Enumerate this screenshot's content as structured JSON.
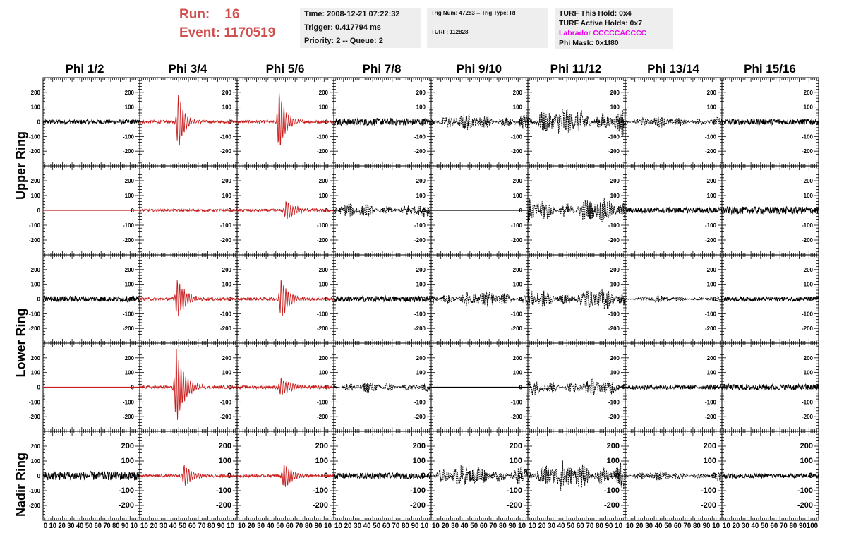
{
  "header": {
    "run_label": "Run:",
    "run_value": "16",
    "event_label": "Event:",
    "event_value": "1170519",
    "time": "Time: 2008-12-21 07:22:32",
    "trigger": "Trigger: 0.417794 ms",
    "priority": "Priority: 2 -- Queue: 2",
    "trig_num": "Trig Num: 47283 -- Trig Type: RF",
    "turf": "TURF: 112828",
    "turf_this_hold": "TURF This Hold: 0x4",
    "turf_active_holds": "TURF Active Holds: 0x7",
    "labrador": "Labrador CCCCCACCCC",
    "phi_mask": "Phi Mask: 0x1f80"
  },
  "colors": {
    "red_trace": "#c81e1e",
    "black_trace": "#000000",
    "run_text": "#d05050",
    "labrador_text": "#ee00ee",
    "box_bg": "#eeeeee"
  },
  "chart_data": {
    "type": "line",
    "columns": [
      "Phi 1/2",
      "Phi 3/4",
      "Phi 5/6",
      "Phi 7/8",
      "Phi 9/10",
      "Phi 11/12",
      "Phi 13/14",
      "Phi 15/16"
    ],
    "rows": [
      "Upper Ring",
      "Lower Ring",
      "Nadir Ring"
    ],
    "ylim": [
      -300,
      300
    ],
    "y_ticks": [
      200,
      100,
      0,
      -100,
      -200
    ],
    "y_tick_labels": [
      "200",
      "100",
      "0",
      "-100",
      "-200"
    ],
    "xlim": [
      0,
      100
    ],
    "x_ticks": [
      0,
      10,
      20,
      30,
      40,
      50,
      60,
      70,
      80,
      90,
      100
    ],
    "x_tick_labels": [
      "0",
      "10",
      "20",
      "30",
      "40",
      "50",
      "60",
      "70",
      "80",
      "90",
      "100"
    ],
    "x_tick_text": [
      "0 10 20 30 40 50 60 70 80 90 10",
      "10 20 30 40 50 60 70 80 90 10",
      "10 20 30 40 50 60 70 80 90 10",
      "10 20 30 40 50 60 70 80 90 10",
      "10 20 30 40 50 60 70 80 90 10",
      "10 20 30 40 50 60 70 80 90 10",
      "10 20 30 40 50 60 70 80 90 10",
      "10 20 30 40 50 60 70 80 90100"
    ],
    "panels": [
      [
        {
          "color": "black",
          "style": "noise",
          "amp": 15,
          "center": 50,
          "width": 100
        },
        {
          "color": "red",
          "style": "burst",
          "amp": 210,
          "center": 39,
          "width": 6
        },
        {
          "color": "red",
          "style": "burst",
          "amp": 240,
          "center": 43,
          "width": 6
        },
        {
          "color": "black",
          "style": "noise",
          "amp": 25,
          "center": 50,
          "width": 100
        },
        {
          "color": "black",
          "style": "dashed",
          "amp": 60,
          "center": 50,
          "width": 100
        },
        {
          "color": "black",
          "style": "dashed",
          "amp": 110,
          "center": 50,
          "width": 100
        },
        {
          "color": "black",
          "style": "dashed",
          "amp": 40,
          "center": 50,
          "width": 100
        },
        {
          "color": "black",
          "style": "noise",
          "amp": 20,
          "center": 50,
          "width": 100
        }
      ],
      [
        {
          "color": "red",
          "style": "flat",
          "amp": 0,
          "center": 50,
          "width": 100
        },
        {
          "color": "red",
          "style": "noise",
          "amp": 8,
          "center": 50,
          "width": 100
        },
        {
          "color": "red",
          "style": "burst",
          "amp": 70,
          "center": 50,
          "width": 10
        },
        {
          "color": "black",
          "style": "dashed",
          "amp": 50,
          "center": 55,
          "width": 100
        },
        {
          "color": "black",
          "style": "flat",
          "amp": 0,
          "center": 50,
          "width": 100
        },
        {
          "color": "black",
          "style": "dashed",
          "amp": 90,
          "center": 40,
          "width": 100
        },
        {
          "color": "black",
          "style": "noise",
          "amp": 20,
          "center": 50,
          "width": 100
        },
        {
          "color": "black",
          "style": "noise",
          "amp": 25,
          "center": 50,
          "width": 100
        }
      ],
      [
        {
          "color": "black",
          "style": "noise",
          "amp": 20,
          "center": 50,
          "width": 100
        },
        {
          "color": "red",
          "style": "burst",
          "amp": 150,
          "center": 38,
          "width": 8
        },
        {
          "color": "red",
          "style": "burst",
          "amp": 150,
          "center": 45,
          "width": 8
        },
        {
          "color": "black",
          "style": "noise",
          "amp": 20,
          "center": 50,
          "width": 100
        },
        {
          "color": "black",
          "style": "dashed",
          "amp": 60,
          "center": 45,
          "width": 100
        },
        {
          "color": "black",
          "style": "dashed",
          "amp": 80,
          "center": 40,
          "width": 100
        },
        {
          "color": "black",
          "style": "dashed",
          "amp": 25,
          "center": 50,
          "width": 100
        },
        {
          "color": "black",
          "style": "noise",
          "amp": 15,
          "center": 50,
          "width": 100
        }
      ],
      [
        {
          "color": "red",
          "style": "flat",
          "amp": 0,
          "center": 50,
          "width": 100
        },
        {
          "color": "red",
          "style": "burst",
          "amp": 280,
          "center": 37,
          "width": 8
        },
        {
          "color": "red",
          "style": "burst",
          "amp": 70,
          "center": 45,
          "width": 10
        },
        {
          "color": "black",
          "style": "dashed",
          "amp": 40,
          "center": 50,
          "width": 100
        },
        {
          "color": "black",
          "style": "flat",
          "amp": 0,
          "center": 50,
          "width": 100
        },
        {
          "color": "black",
          "style": "dashed",
          "amp": 60,
          "center": 20,
          "width": 100
        },
        {
          "color": "black",
          "style": "noise",
          "amp": 15,
          "center": 50,
          "width": 100
        },
        {
          "color": "black",
          "style": "noise",
          "amp": 20,
          "center": 50,
          "width": 100
        }
      ],
      [
        {
          "color": "black",
          "style": "noise",
          "amp": 30,
          "center": 50,
          "width": 100
        },
        {
          "color": "red",
          "style": "burst",
          "amp": 80,
          "center": 45,
          "width": 8
        },
        {
          "color": "red",
          "style": "burst",
          "amp": 100,
          "center": 48,
          "width": 8
        },
        {
          "color": "black",
          "style": "noise",
          "amp": 20,
          "center": 50,
          "width": 100
        },
        {
          "color": "black",
          "style": "dashed",
          "amp": 80,
          "center": 70,
          "width": 100
        },
        {
          "color": "black",
          "style": "dashed",
          "amp": 110,
          "center": 50,
          "width": 100
        },
        {
          "color": "black",
          "style": "dashed",
          "amp": 35,
          "center": 50,
          "width": 100
        },
        {
          "color": "black",
          "style": "noise",
          "amp": 15,
          "center": 50,
          "width": 100
        }
      ]
    ]
  }
}
